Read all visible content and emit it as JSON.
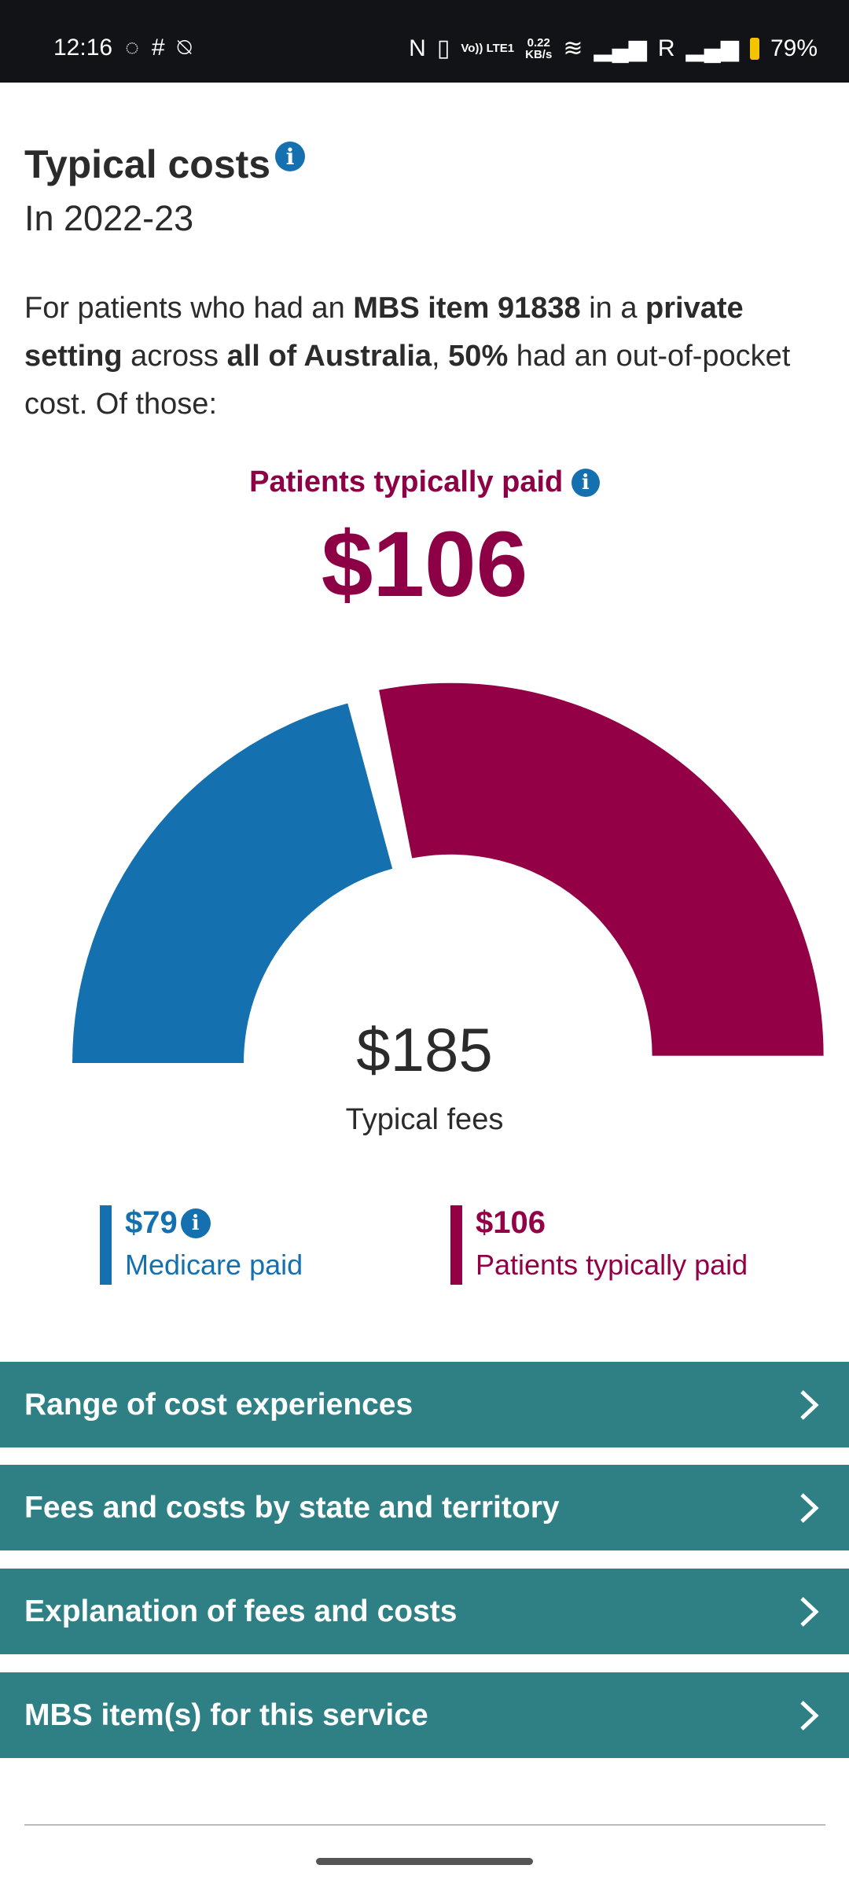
{
  "status_bar": {
    "time": "12:16",
    "data_rate": "0.22",
    "data_unit": "KB/s",
    "volte": "Vo)) LTE1",
    "roaming": "R",
    "battery": "79%"
  },
  "header": {
    "title": "Typical costs",
    "period": "In 2022-23"
  },
  "summary": {
    "p1": "For patients who had an ",
    "b1": "MBS item 91838",
    "p2": " in a ",
    "b2": "private setting",
    "p3": " across ",
    "b3": "all of Australia",
    "p4": ", ",
    "b4": "50%",
    "p5": " had an out-of-pocket cost. Of those:"
  },
  "headline": {
    "label": "Patients typically paid",
    "value": "$106"
  },
  "chart_data": {
    "type": "pie",
    "subtype": "semi-donut",
    "total_label": "Typical fees",
    "total_value": "$185",
    "series": [
      {
        "name": "Medicare paid",
        "value": 79,
        "color": "#1570b0"
      },
      {
        "name": "Patients typically paid",
        "value": 106,
        "color": "#930046"
      }
    ]
  },
  "legend": [
    {
      "value": "$79",
      "label": "Medicare paid",
      "color": "#1570b0"
    },
    {
      "value": "$106",
      "label": "Patients typically paid",
      "color": "#930046"
    }
  ],
  "sections": [
    {
      "label": "Range of cost experiences"
    },
    {
      "label": "Fees and costs by state and territory"
    },
    {
      "label": "Explanation of fees and costs"
    },
    {
      "label": "MBS item(s) for this service"
    }
  ],
  "icons": {
    "info": "i"
  }
}
